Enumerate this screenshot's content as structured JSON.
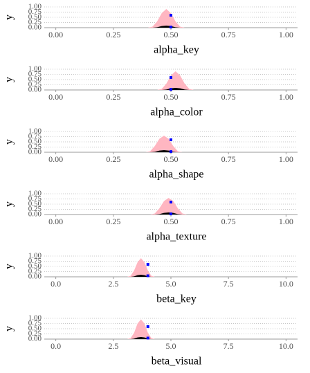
{
  "chart_data": [
    {
      "type": "density",
      "xlabel": "alpha_key",
      "ylabel": "y",
      "grid": true,
      "xlim": [
        -0.05,
        1.05
      ],
      "xticks": [
        {
          "value": 0,
          "label": "0.00"
        },
        {
          "value": 0.25,
          "label": "0.25"
        },
        {
          "value": 0.5,
          "label": "0.50"
        },
        {
          "value": 0.75,
          "label": "0.75"
        },
        {
          "value": 1,
          "label": "1.00"
        }
      ],
      "ylim": [
        0,
        1
      ],
      "yticks": [
        {
          "value": 0,
          "label": "0.00"
        },
        {
          "value": 0.25,
          "label": "0.25"
        },
        {
          "value": 0.5,
          "label": "0.50"
        },
        {
          "value": 0.75,
          "label": "0.75"
        },
        {
          "value": 1,
          "label": "1.00"
        }
      ],
      "series": [
        {
          "color": "#ffb6c1",
          "x": [
            0.4,
            0.42,
            0.44,
            0.46,
            0.48,
            0.5,
            0.52,
            0.54,
            0.56
          ],
          "values": [
            0,
            0.05,
            0.3,
            0.7,
            0.9,
            0.7,
            0.3,
            0.05,
            0
          ]
        },
        {
          "color": "#000000",
          "x": [
            0.4,
            0.42,
            0.44,
            0.46,
            0.48,
            0.5,
            0.52,
            0.54,
            0.56
          ],
          "values": [
            0,
            0,
            0.02,
            0.08,
            0.1,
            0.08,
            0.02,
            0,
            0
          ]
        }
      ],
      "points": {
        "color": "#0000ff",
        "x": [
          0.5,
          0.5
        ],
        "values": [
          0.6,
          0.03
        ]
      }
    },
    {
      "type": "density",
      "xlabel": "alpha_color",
      "ylabel": "y",
      "grid": true,
      "xlim": [
        -0.05,
        1.05
      ],
      "xticks": [
        {
          "value": 0,
          "label": "0.00"
        },
        {
          "value": 0.25,
          "label": "0.25"
        },
        {
          "value": 0.5,
          "label": "0.50"
        },
        {
          "value": 0.75,
          "label": "0.75"
        },
        {
          "value": 1,
          "label": "1.00"
        }
      ],
      "ylim": [
        0,
        1
      ],
      "yticks": [
        {
          "value": 0,
          "label": "0.00"
        },
        {
          "value": 0.25,
          "label": "0.25"
        },
        {
          "value": 0.5,
          "label": "0.50"
        },
        {
          "value": 0.75,
          "label": "0.75"
        },
        {
          "value": 1,
          "label": "1.00"
        }
      ],
      "series": [
        {
          "color": "#ffb6c1",
          "x": [
            0.44,
            0.46,
            0.48,
            0.5,
            0.52,
            0.54,
            0.56,
            0.58,
            0.6
          ],
          "values": [
            0,
            0.05,
            0.3,
            0.7,
            0.9,
            0.7,
            0.3,
            0.05,
            0
          ]
        },
        {
          "color": "#000000",
          "x": [
            0.44,
            0.46,
            0.48,
            0.5,
            0.52,
            0.54,
            0.56,
            0.58,
            0.6
          ],
          "values": [
            0,
            0,
            0.02,
            0.08,
            0.1,
            0.08,
            0.02,
            0,
            0
          ]
        }
      ],
      "points": {
        "color": "#0000ff",
        "x": [
          0.5,
          0.5
        ],
        "values": [
          0.6,
          0.03
        ]
      }
    },
    {
      "type": "density",
      "xlabel": "alpha_shape",
      "ylabel": "y",
      "grid": true,
      "xlim": [
        -0.05,
        1.05
      ],
      "xticks": [
        {
          "value": 0,
          "label": "0.00"
        },
        {
          "value": 0.25,
          "label": "0.25"
        },
        {
          "value": 0.5,
          "label": "0.50"
        },
        {
          "value": 0.75,
          "label": "0.75"
        },
        {
          "value": 1,
          "label": "1.00"
        }
      ],
      "ylim": [
        0,
        1
      ],
      "yticks": [
        {
          "value": 0,
          "label": "0.00"
        },
        {
          "value": 0.25,
          "label": "0.25"
        },
        {
          "value": 0.5,
          "label": "0.50"
        },
        {
          "value": 0.75,
          "label": "0.75"
        },
        {
          "value": 1,
          "label": "1.00"
        }
      ],
      "series": [
        {
          "color": "#ffb6c1",
          "x": [
            0.39,
            0.41,
            0.43,
            0.45,
            0.47,
            0.49,
            0.51,
            0.53,
            0.55
          ],
          "values": [
            0,
            0.05,
            0.3,
            0.65,
            0.8,
            0.65,
            0.3,
            0.05,
            0
          ]
        },
        {
          "color": "#000000",
          "x": [
            0.39,
            0.41,
            0.43,
            0.45,
            0.47,
            0.49,
            0.51,
            0.53,
            0.55
          ],
          "values": [
            0,
            0,
            0.02,
            0.08,
            0.1,
            0.08,
            0.02,
            0,
            0
          ]
        }
      ],
      "points": {
        "color": "#0000ff",
        "x": [
          0.5,
          0.5
        ],
        "values": [
          0.6,
          0.03
        ]
      }
    },
    {
      "type": "density",
      "xlabel": "alpha_texture",
      "ylabel": "y",
      "grid": true,
      "xlim": [
        -0.05,
        1.05
      ],
      "xticks": [
        {
          "value": 0,
          "label": "0.00"
        },
        {
          "value": 0.25,
          "label": "0.25"
        },
        {
          "value": 0.5,
          "label": "0.50"
        },
        {
          "value": 0.75,
          "label": "0.75"
        },
        {
          "value": 1,
          "label": "1.00"
        }
      ],
      "ylim": [
        0,
        1
      ],
      "yticks": [
        {
          "value": 0,
          "label": "0.00"
        },
        {
          "value": 0.25,
          "label": "0.25"
        },
        {
          "value": 0.5,
          "label": "0.50"
        },
        {
          "value": 0.75,
          "label": "0.75"
        },
        {
          "value": 1,
          "label": "1.00"
        }
      ],
      "series": [
        {
          "color": "#ffb6c1",
          "x": [
            0.41,
            0.43,
            0.45,
            0.47,
            0.49,
            0.51,
            0.53,
            0.55,
            0.57
          ],
          "values": [
            0,
            0.05,
            0.3,
            0.65,
            0.8,
            0.65,
            0.3,
            0.05,
            0
          ]
        },
        {
          "color": "#000000",
          "x": [
            0.41,
            0.43,
            0.45,
            0.47,
            0.49,
            0.51,
            0.53,
            0.55,
            0.57
          ],
          "values": [
            0,
            0,
            0.02,
            0.08,
            0.1,
            0.08,
            0.02,
            0,
            0
          ]
        }
      ],
      "points": {
        "color": "#0000ff",
        "x": [
          0.5,
          0.5
        ],
        "values": [
          0.6,
          0.03
        ]
      }
    },
    {
      "type": "density",
      "xlabel": "beta_key",
      "ylabel": "y",
      "grid": true,
      "xlim": [
        -0.5,
        10.5
      ],
      "xticks": [
        {
          "value": 0,
          "label": "0.0"
        },
        {
          "value": 2.5,
          "label": "2.5"
        },
        {
          "value": 5,
          "label": "5.0"
        },
        {
          "value": 7.5,
          "label": "7.5"
        },
        {
          "value": 10,
          "label": "10.0"
        }
      ],
      "ylim": [
        0,
        1
      ],
      "yticks": [
        {
          "value": 0,
          "label": "0.00"
        },
        {
          "value": 0.25,
          "label": "0.25"
        },
        {
          "value": 0.5,
          "label": "0.50"
        },
        {
          "value": 0.75,
          "label": "0.75"
        },
        {
          "value": 1,
          "label": "1.00"
        }
      ],
      "series": [
        {
          "color": "#ffb6c1",
          "x": [
            3.1,
            3.25,
            3.4,
            3.55,
            3.7,
            3.85,
            4.0,
            4.15,
            4.3
          ],
          "values": [
            0,
            0.05,
            0.3,
            0.7,
            0.9,
            0.7,
            0.3,
            0.05,
            0
          ]
        },
        {
          "color": "#000000",
          "x": [
            3.1,
            3.25,
            3.4,
            3.55,
            3.7,
            3.85,
            4.0,
            4.15,
            4.3
          ],
          "values": [
            0,
            0,
            0.02,
            0.08,
            0.1,
            0.08,
            0.02,
            0,
            0
          ]
        }
      ],
      "points": {
        "color": "#0000ff",
        "x": [
          4,
          4
        ],
        "values": [
          0.6,
          0.05
        ]
      }
    },
    {
      "type": "density",
      "xlabel": "beta_visual",
      "ylabel": "y",
      "grid": true,
      "xlim": [
        -0.5,
        10.5
      ],
      "xticks": [
        {
          "value": 0,
          "label": "0.0"
        },
        {
          "value": 2.5,
          "label": "2.5"
        },
        {
          "value": 5,
          "label": "5.0"
        },
        {
          "value": 7.5,
          "label": "7.5"
        },
        {
          "value": 10,
          "label": "10.0"
        }
      ],
      "ylim": [
        0,
        1
      ],
      "yticks": [
        {
          "value": 0,
          "label": "0.00"
        },
        {
          "value": 0.25,
          "label": "0.25"
        },
        {
          "value": 0.5,
          "label": "0.50"
        },
        {
          "value": 0.75,
          "label": "0.75"
        },
        {
          "value": 1,
          "label": "1.00"
        }
      ],
      "series": [
        {
          "color": "#ffb6c1",
          "x": [
            3.1,
            3.25,
            3.4,
            3.55,
            3.7,
            3.85,
            4.0,
            4.15,
            4.3
          ],
          "values": [
            0,
            0.05,
            0.3,
            0.75,
            0.95,
            0.75,
            0.3,
            0.05,
            0
          ]
        },
        {
          "color": "#000000",
          "x": [
            3.1,
            3.25,
            3.4,
            3.55,
            3.7,
            3.85,
            4.0,
            4.15,
            4.3
          ],
          "values": [
            0,
            0,
            0.02,
            0.08,
            0.1,
            0.08,
            0.02,
            0,
            0
          ]
        }
      ],
      "points": {
        "color": "#0000ff",
        "x": [
          4,
          4
        ],
        "values": [
          0.6,
          0.05
        ]
      }
    }
  ]
}
